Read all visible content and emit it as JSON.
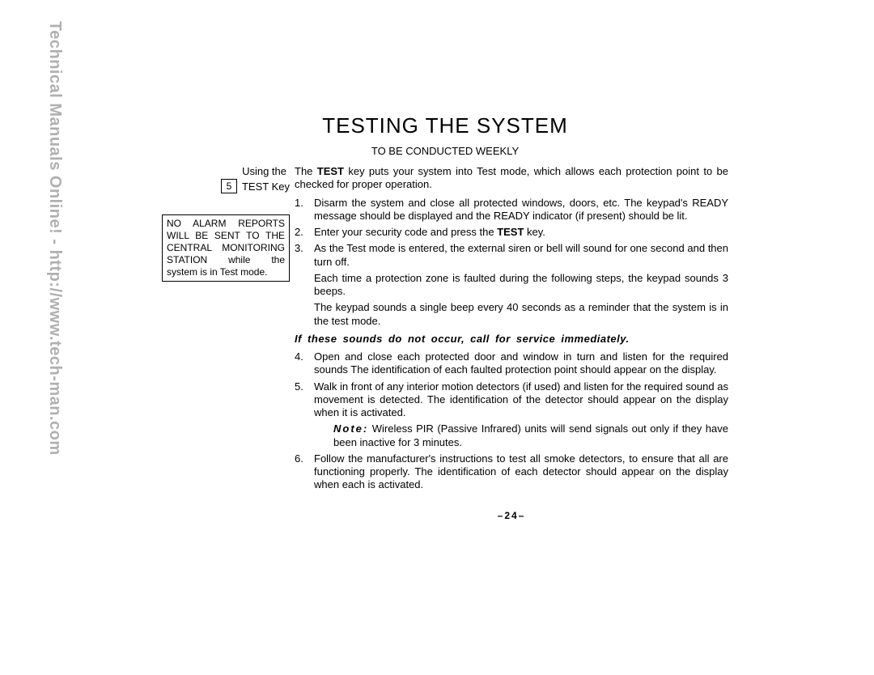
{
  "watermark": "Technical Manuals Online! - http://www.tech-man.com",
  "title": "TESTING THE SYSTEM",
  "subtitle": "TO BE CONDUCTED WEEKLY",
  "sidebar": {
    "using_label": "Using the",
    "key_number": "5",
    "key_label": "TEST Key",
    "notice_l1": "NO ALARM REPORTS",
    "notice_l2": "WILL BE SENT TO THE",
    "notice_l3": "CENTRAL MONITORING",
    "notice_l4": "STATION while the",
    "notice_l5": "system is in Test mode."
  },
  "body": {
    "intro_pre": "The ",
    "intro_bold": "TEST",
    "intro_post": " key puts your system into Test mode, which allows each protection point to be checked for proper operation.",
    "s1_num": "1.",
    "s1": "Disarm the system and close all protected windows, doors, etc. The keypad's READY message should be displayed and the READY indicator (if present) should be lit.",
    "s2_num": "2.",
    "s2_pre": "Enter your security code and press the ",
    "s2_bold": "TEST",
    "s2_post": " key.",
    "s3_num": "3.",
    "s3": "As the Test mode is entered, the external siren or bell will sound for one second and then turn off.",
    "s3_sub1": "Each time a protection zone is faulted during the following steps, the keypad sounds 3 beeps.",
    "s3_sub2": "The keypad sounds a single beep every 40 seconds as a reminder that the system is in the test mode.",
    "emph": "If these sounds do not occur, call for service immediately.",
    "s4_num": "4.",
    "s4": "Open and close each protected door and window in turn and listen for the required sounds The identification of each faulted protection point should appear on the display.",
    "s5_num": "5.",
    "s5": "Walk in front of any interior motion detectors (if used) and listen for the required sound as movement is detected. The identification of the detector should appear on the display when it is activated.",
    "s5_note_label": "Note:",
    "s5_note": " Wireless PIR (Passive Infrared) units will send signals out only if they have been inactive for 3 minutes.",
    "s6_num": "6.",
    "s6": "Follow the manufacturer's instructions to test all smoke detectors, to ensure that all are functioning properly. The identification of each detector should appear on the display when each is activated."
  },
  "page_number": "–24–",
  "colors": {
    "text": "#000000",
    "watermark": "#b0b0b0",
    "background": "#ffffff"
  },
  "typography": {
    "title_size_pt": 20,
    "body_size_pt": 10,
    "watermark_size_pt": 15
  }
}
